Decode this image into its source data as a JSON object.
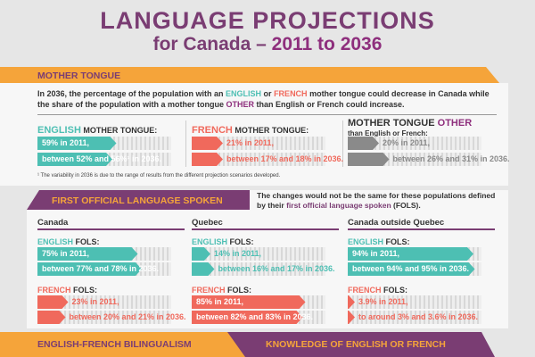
{
  "title": {
    "line1": "LANGUAGE PROJECTIONS",
    "line2a": "for Canada – ",
    "line2b": "2011 to 2036"
  },
  "colors": {
    "purple": "#7a3d73",
    "orange": "#f5a43a",
    "english": "#4dbfb3",
    "french": "#f0695c",
    "other": "#8a8a8a"
  },
  "mother_tongue": {
    "heading": "MOTHER TONGUE",
    "intro": {
      "a": "In 2036, the percentage of the population with an ",
      "en": "ENGLISH",
      "b": " or ",
      "fr": "FRENCH",
      "c": " mother tongue could decrease in Canada while the share of the population with a mother tongue ",
      "ot": "OTHER",
      "d": " than English or French could increase."
    },
    "columns": [
      {
        "h1": "ENGLISH",
        "h2": " MOTHER TONGUE:",
        "h3": "",
        "kind": "english",
        "bars": [
          {
            "pct": 59,
            "text": "59% in 2011,"
          },
          {
            "pct": 56,
            "text": "between 52% and 56%¹ in 2036."
          }
        ]
      },
      {
        "h1": "FRENCH",
        "h2": " MOTHER TONGUE:",
        "h3": "",
        "kind": "french",
        "bars": [
          {
            "pct": 21,
            "text": "21% in 2011,"
          },
          {
            "pct": 18,
            "text": "between 17% and 18% in 2036."
          }
        ]
      },
      {
        "h1": "MOTHER TONGUE ",
        "h2": "OTHER",
        "h3": "than English or French:",
        "kind": "other",
        "bars": [
          {
            "pct": 20,
            "text": "20% in 2011,"
          },
          {
            "pct": 31,
            "text": "between 26% and 31% in 2036."
          }
        ]
      }
    ],
    "footnote": "¹  The variability in 2036 is due to the range of results from the different projection scenarios developed."
  },
  "fols": {
    "heading": "FIRST OFFICIAL LANGUAGE SPOKEN",
    "note_a": "The changes would not be the same for these populations defined by their ",
    "note_b": "first official language spoken",
    "note_c": " (FOLS).",
    "regions": [
      {
        "name": "Canada",
        "english": [
          {
            "pct": 75,
            "text": "75% in 2011,"
          },
          {
            "pct": 78,
            "text": "between 77% and 78% in 2036."
          }
        ],
        "french": [
          {
            "pct": 23,
            "text": "23% in 2011,"
          },
          {
            "pct": 21,
            "text": "between 20% and 21% in 2036."
          }
        ]
      },
      {
        "name": "Quebec",
        "english": [
          {
            "pct": 14,
            "text": "14% in 2011,"
          },
          {
            "pct": 17,
            "text": "between 16% and 17% in 2036."
          }
        ],
        "french": [
          {
            "pct": 85,
            "text": "85% in 2011,"
          },
          {
            "pct": 83,
            "text": "between 82% and 83% in 2036."
          }
        ]
      },
      {
        "name": "Canada outside Quebec",
        "english": [
          {
            "pct": 94,
            "text": "94% in 2011,"
          },
          {
            "pct": 95,
            "text": "between 94% and 95% in 2036."
          }
        ],
        "french": [
          {
            "pct": 3.9,
            "text": "3.9% in 2011,"
          },
          {
            "pct": 3.6,
            "text": "to around 3% and 3.6% in 2036."
          }
        ]
      }
    ],
    "en_label": "ENGLISH",
    "fr_label": "FRENCH",
    "fols_label": " FOLS:"
  },
  "bottom": {
    "left": "ENGLISH-FRENCH BILINGUALISM",
    "right": "KNOWLEDGE OF ENGLISH OR FRENCH"
  }
}
